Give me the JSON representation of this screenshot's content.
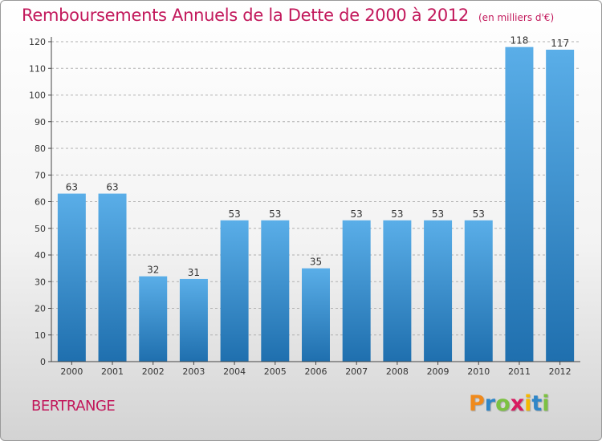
{
  "header": {
    "title": "Remboursements Annuels de la Dette de 2000 à 2012",
    "subtitle": "(en milliers d'€)"
  },
  "footer": {
    "commune": "BERTRANGE",
    "logo": {
      "letters": [
        "P",
        "r",
        "o",
        "x",
        "i",
        "t",
        "i"
      ],
      "colors": [
        "#f08a1c",
        "#2e86c8",
        "#7cc142",
        "#d81b60",
        "#f5b800",
        "#2e86c8",
        "#7cc142"
      ]
    }
  },
  "colors": {
    "bar_dark": "#1f6fae",
    "bar_light": "#5aaee8",
    "title": "#c2185b",
    "grid": "#b0b0b0",
    "axis": "#444444",
    "text": "#333333"
  },
  "chart_data": {
    "type": "bar",
    "title": "Remboursements Annuels de la Dette de 2000 à 2012",
    "subtitle": "(en milliers d'€)",
    "xlabel": "",
    "ylabel": "",
    "categories": [
      "2000",
      "2001",
      "2002",
      "2003",
      "2004",
      "2005",
      "2006",
      "2007",
      "2008",
      "2009",
      "2010",
      "2011",
      "2012"
    ],
    "values": [
      63,
      63,
      32,
      31,
      53,
      53,
      35,
      53,
      53,
      53,
      53,
      118,
      117
    ],
    "data_labels": [
      "63",
      "63",
      "32",
      "31",
      "53",
      "53",
      "35",
      "53",
      "53",
      "53",
      "53",
      "118",
      "117"
    ],
    "ylim": [
      0,
      120
    ],
    "yticks": [
      0,
      10,
      20,
      30,
      40,
      50,
      60,
      70,
      80,
      90,
      100,
      110,
      120
    ],
    "grid": "horizontal-dashed",
    "legend": "none"
  }
}
